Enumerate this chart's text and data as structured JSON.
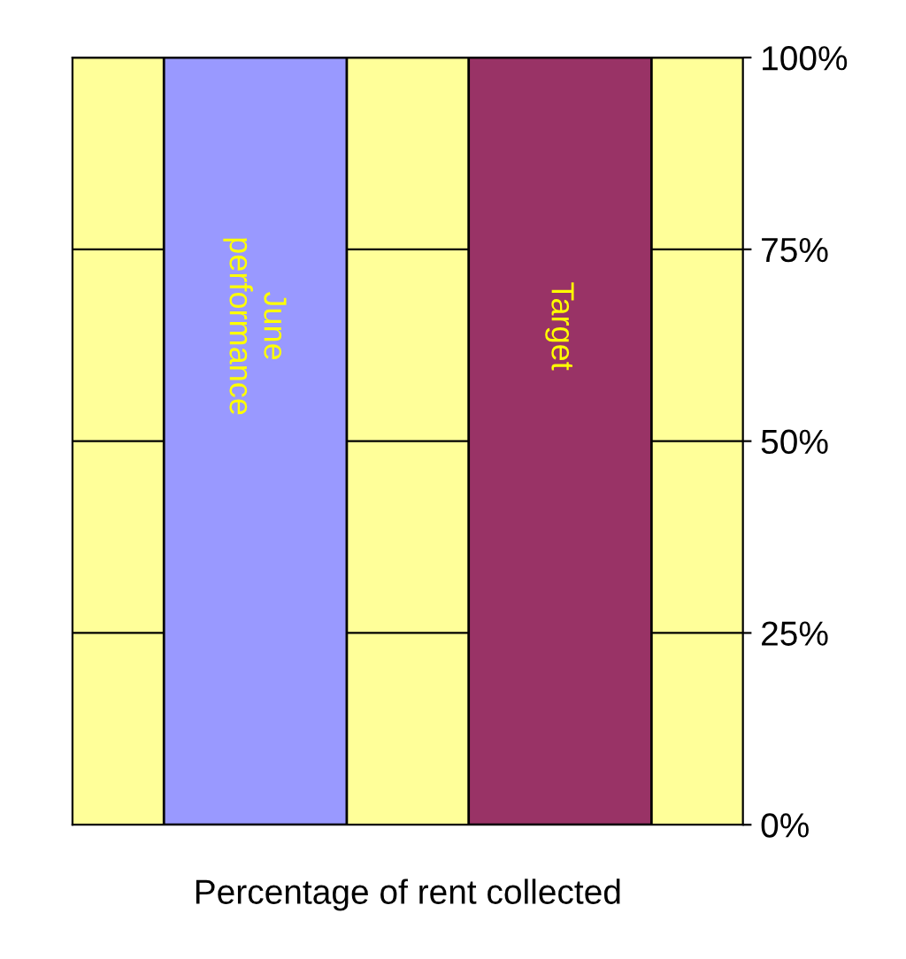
{
  "chart_data": {
    "type": "bar",
    "xlabel": "Percentage of rent collected",
    "categories": [
      "June\nperformance",
      "Target"
    ],
    "values": [
      100,
      100
    ],
    "colors": [
      "#9999ff",
      "#993366"
    ],
    "ylim": [
      0,
      100
    ],
    "yticks": [
      {
        "value": 0,
        "label": "0%"
      },
      {
        "value": 25,
        "label": "25%"
      },
      {
        "value": 50,
        "label": "50%"
      },
      {
        "value": 75,
        "label": "75%"
      },
      {
        "value": 100,
        "label": "100%"
      }
    ],
    "grid": "y"
  }
}
